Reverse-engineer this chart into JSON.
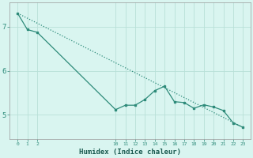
{
  "line1_x": [
    0,
    1,
    2,
    10,
    11,
    12,
    13,
    14,
    15,
    16,
    17,
    18,
    19,
    20,
    21,
    22,
    23
  ],
  "line1_y": [
    7.3,
    6.93,
    6.87,
    5.12,
    5.22,
    5.22,
    5.35,
    5.55,
    5.65,
    5.3,
    5.28,
    5.15,
    5.23,
    5.18,
    5.1,
    4.82,
    4.72
  ],
  "line2_x": [
    0,
    23
  ],
  "line2_y": [
    7.3,
    4.72
  ],
  "line_color": "#2e8b7a",
  "bg_color": "#d9f5f0",
  "grid_color": "#b8e0d8",
  "xlabel": "Humidex (Indice chaleur)",
  "xticks": [
    0,
    1,
    2,
    10,
    11,
    12,
    13,
    14,
    15,
    16,
    17,
    18,
    19,
    20,
    21,
    22,
    23
  ],
  "yticks": [
    5,
    6,
    7
  ],
  "ylim": [
    4.45,
    7.55
  ],
  "xlim": [
    -0.8,
    23.8
  ]
}
